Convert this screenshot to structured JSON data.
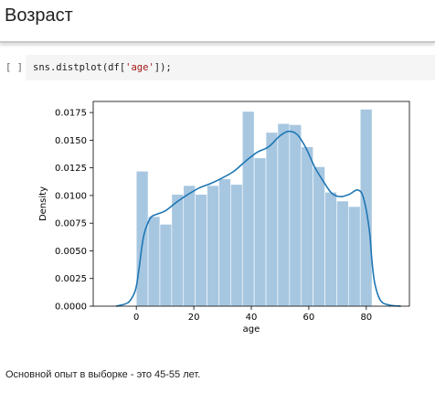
{
  "section": {
    "title": "Возраст"
  },
  "cell": {
    "run_indicator": "[ ]",
    "code_prefix": "sns.distplot(df[",
    "code_string": "'age'",
    "code_suffix": "]);"
  },
  "output": {
    "caption": "Основной опыт в выборке - это 45-55 лет."
  },
  "colors": {
    "bar_fill": "#a7c7e1",
    "kde_line": "#1f77b4",
    "code_bg": "#f5f5f5",
    "string_literal": "#a31515"
  },
  "chart_data": {
    "type": "bar",
    "overlay": "kde-line",
    "xlabel": "age",
    "ylabel": "Density",
    "xlim": [
      -15,
      95
    ],
    "ylim": [
      0,
      0.0185
    ],
    "x_ticks": [
      0,
      20,
      40,
      60,
      80
    ],
    "y_ticks": [
      0.0,
      0.0025,
      0.005,
      0.0075,
      0.01,
      0.0125,
      0.015,
      0.0175
    ],
    "y_tick_labels": [
      "0.0000",
      "0.0025",
      "0.0050",
      "0.0075",
      "0.0100",
      "0.0125",
      "0.0150",
      "0.0175"
    ],
    "grid": false,
    "bins": [
      {
        "x0": 0.0,
        "x1": 4.1,
        "density": 0.0122
      },
      {
        "x0": 4.1,
        "x1": 8.2,
        "density": 0.0081
      },
      {
        "x0": 8.2,
        "x1": 12.3,
        "density": 0.0074
      },
      {
        "x0": 12.3,
        "x1": 16.4,
        "density": 0.0101
      },
      {
        "x0": 16.4,
        "x1": 20.5,
        "density": 0.0109
      },
      {
        "x0": 20.5,
        "x1": 24.6,
        "density": 0.0101
      },
      {
        "x0": 24.6,
        "x1": 28.7,
        "density": 0.0109
      },
      {
        "x0": 28.7,
        "x1": 32.8,
        "density": 0.0115
      },
      {
        "x0": 32.8,
        "x1": 36.9,
        "density": 0.011
      },
      {
        "x0": 36.9,
        "x1": 41.0,
        "density": 0.0176
      },
      {
        "x0": 41.0,
        "x1": 45.1,
        "density": 0.0134
      },
      {
        "x0": 45.1,
        "x1": 49.2,
        "density": 0.0157
      },
      {
        "x0": 49.2,
        "x1": 53.3,
        "density": 0.0165
      },
      {
        "x0": 53.3,
        "x1": 57.4,
        "density": 0.0164
      },
      {
        "x0": 57.4,
        "x1": 61.5,
        "density": 0.0144
      },
      {
        "x0": 61.5,
        "x1": 65.6,
        "density": 0.0126
      },
      {
        "x0": 65.6,
        "x1": 69.7,
        "density": 0.0103
      },
      {
        "x0": 69.7,
        "x1": 73.8,
        "density": 0.0095
      },
      {
        "x0": 73.8,
        "x1": 77.9,
        "density": 0.009
      },
      {
        "x0": 77.9,
        "x1": 82.0,
        "density": 0.0178
      }
    ],
    "kde": {
      "x": [
        -7,
        -3,
        -1,
        0,
        1,
        2,
        3,
        5,
        7,
        10,
        14,
        18,
        22,
        26,
        30,
        34,
        38,
        42,
        46,
        50,
        53,
        56,
        59,
        62,
        65,
        68,
        71,
        74,
        77,
        79,
        81,
        82,
        83,
        85,
        88,
        92
      ],
      "y": [
        0.0,
        0.0003,
        0.001,
        0.0018,
        0.0035,
        0.0055,
        0.0068,
        0.008,
        0.0083,
        0.0086,
        0.0094,
        0.0101,
        0.0107,
        0.0111,
        0.0116,
        0.0122,
        0.0131,
        0.0139,
        0.0144,
        0.0154,
        0.0158,
        0.0155,
        0.0143,
        0.0126,
        0.0113,
        0.0102,
        0.0099,
        0.0101,
        0.0105,
        0.0098,
        0.007,
        0.004,
        0.002,
        0.0005,
        0.0001,
        0.0
      ]
    }
  }
}
